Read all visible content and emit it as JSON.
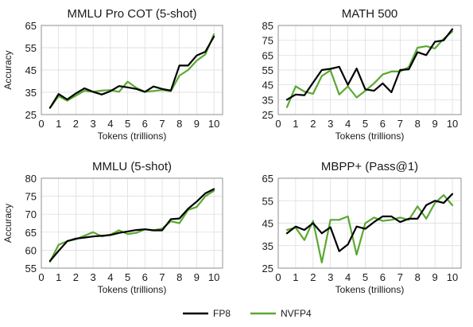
{
  "colors": {
    "fp8": "#000000",
    "nvfp4": "#5aa832",
    "grid": "#d9d9d9"
  },
  "legend": [
    {
      "name": "FP8",
      "color": "#000000"
    },
    {
      "name": "NVFP4",
      "color": "#5aa832"
    }
  ],
  "chart_data": [
    {
      "type": "line",
      "title": "MMLU Pro COT (5-shot)",
      "xlabel": "Tokens (trillions)",
      "ylabel": "Accuracy",
      "xlim": [
        0,
        10.5
      ],
      "ylim": [
        25,
        65
      ],
      "xticks": [
        0,
        1,
        2,
        3,
        4,
        5,
        6,
        7,
        8,
        9,
        10
      ],
      "yticks": [
        25,
        35,
        45,
        55,
        65
      ],
      "grid": true,
      "series": [
        {
          "name": "FP8",
          "x": [
            0.5,
            1,
            1.5,
            2,
            2.5,
            3,
            3.5,
            4,
            4.5,
            5,
            5.5,
            6,
            6.5,
            7,
            7.5,
            8,
            8.5,
            9,
            9.5,
            10
          ],
          "y": [
            28,
            34.2,
            31.8,
            34.5,
            36.8,
            35.2,
            34,
            35.5,
            37.8,
            37.2,
            36.5,
            35.2,
            37.6,
            36.5,
            35.8,
            47,
            47,
            51.5,
            53.2,
            60
          ]
        },
        {
          "name": "NVFP4",
          "x": [
            0.5,
            1,
            1.5,
            2,
            2.5,
            3,
            3.5,
            4,
            4.5,
            5,
            5.5,
            6,
            6.5,
            7,
            7.5,
            8,
            8.5,
            9,
            9.5,
            10
          ],
          "y": [
            28,
            33.3,
            31.2,
            33.5,
            35.7,
            35.2,
            35.8,
            36,
            35.2,
            39.8,
            37,
            35.2,
            35.6,
            36,
            35.5,
            42.5,
            45,
            49.2,
            52,
            61
          ]
        }
      ]
    },
    {
      "type": "line",
      "title": "MATH 500",
      "xlabel": "Tokens (trillions)",
      "ylabel": "",
      "xlim": [
        0,
        10.5
      ],
      "ylim": [
        25,
        85
      ],
      "xticks": [
        0,
        1,
        2,
        3,
        4,
        5,
        6,
        7,
        8,
        9,
        10
      ],
      "yticks": [
        25,
        35,
        45,
        55,
        65,
        75,
        85
      ],
      "grid": true,
      "series": [
        {
          "name": "FP8",
          "x": [
            0.5,
            1,
            1.5,
            2,
            2.5,
            3,
            3.5,
            4,
            4.5,
            5,
            5.5,
            6,
            6.5,
            7,
            7.5,
            8,
            8.5,
            9,
            9.5,
            10
          ],
          "y": [
            35,
            38.5,
            38,
            46.5,
            55,
            55.8,
            57.2,
            45,
            56,
            42,
            41,
            46,
            40,
            55,
            55.5,
            67,
            65,
            74,
            75,
            82.5
          ]
        },
        {
          "name": "NVFP4",
          "x": [
            0.5,
            1,
            1.5,
            2,
            2.5,
            3,
            3.5,
            4,
            4.5,
            5,
            5.5,
            6,
            6.5,
            7,
            7.5,
            8,
            8.5,
            9,
            9.5,
            10
          ],
          "y": [
            30,
            44,
            40.5,
            39,
            51,
            54.8,
            38.5,
            44,
            36.5,
            41,
            46,
            52,
            54,
            54,
            57,
            70,
            71,
            69.5,
            76,
            81
          ]
        }
      ]
    },
    {
      "type": "line",
      "title": "MMLU (5-shot)",
      "xlabel": "Tokens (trillions)",
      "ylabel": "Accuracy",
      "xlim": [
        0,
        10.5
      ],
      "ylim": [
        55,
        80
      ],
      "xticks": [
        0,
        1,
        2,
        3,
        4,
        5,
        6,
        7,
        8,
        9,
        10
      ],
      "yticks": [
        55,
        60,
        65,
        70,
        75,
        80
      ],
      "grid": true,
      "series": [
        {
          "name": "FP8",
          "x": [
            0.5,
            1,
            1.5,
            2,
            2.5,
            3,
            3.5,
            4,
            4.5,
            5,
            5.5,
            6,
            6.5,
            7,
            7.5,
            8,
            8.5,
            9,
            9.5,
            10
          ],
          "y": [
            57,
            59.8,
            62.5,
            63.2,
            63.5,
            63.8,
            64,
            64.2,
            64.8,
            65.2,
            65.6,
            65.8,
            65.5,
            65.5,
            68.6,
            68.8,
            71.5,
            73.5,
            75.8,
            77
          ]
        },
        {
          "name": "NVFP4",
          "x": [
            0.5,
            1,
            1.5,
            2,
            2.5,
            3,
            3.5,
            4,
            4.5,
            5,
            5.5,
            6,
            6.5,
            7,
            7.5,
            8,
            8.5,
            9,
            9.5,
            10
          ],
          "y": [
            56.8,
            61.5,
            62.5,
            63,
            64,
            65,
            63.8,
            64.3,
            65.5,
            64.5,
            64.8,
            65.8,
            65.5,
            66,
            68,
            67.5,
            71.2,
            72,
            75,
            76.5
          ]
        }
      ]
    },
    {
      "type": "line",
      "title": "MBPP+ (Pass@1)",
      "xlabel": "Tokens (trillions)",
      "ylabel": "",
      "xlim": [
        0,
        10.5
      ],
      "ylim": [
        25,
        65
      ],
      "xticks": [
        0,
        1,
        2,
        3,
        4,
        5,
        6,
        7,
        8,
        9,
        10
      ],
      "yticks": [
        25,
        35,
        45,
        55,
        65
      ],
      "grid": true,
      "series": [
        {
          "name": "FP8",
          "x": [
            0.5,
            1,
            1.5,
            2,
            2.5,
            3,
            3.5,
            4,
            4.5,
            5,
            5.5,
            6,
            6.5,
            7,
            7.5,
            8,
            8.5,
            9,
            9.5,
            10
          ],
          "y": [
            40.5,
            43.5,
            42,
            45,
            40.5,
            43.2,
            32.5,
            35.5,
            43.5,
            42.5,
            45.5,
            48,
            48,
            45.5,
            47,
            47,
            53,
            55,
            54,
            58
          ]
        },
        {
          "name": "NVFP4",
          "x": [
            0.5,
            1,
            1.5,
            2,
            2.5,
            3,
            3.5,
            4,
            4.5,
            5,
            5.5,
            6,
            6.5,
            7,
            7.5,
            8,
            8.5,
            9,
            9.5,
            10
          ],
          "y": [
            42,
            43,
            37.5,
            46,
            27.5,
            46.5,
            46.5,
            48,
            31,
            45,
            47.5,
            46,
            46.5,
            47.5,
            46.5,
            52.5,
            47,
            54,
            57.5,
            53
          ]
        }
      ]
    }
  ]
}
